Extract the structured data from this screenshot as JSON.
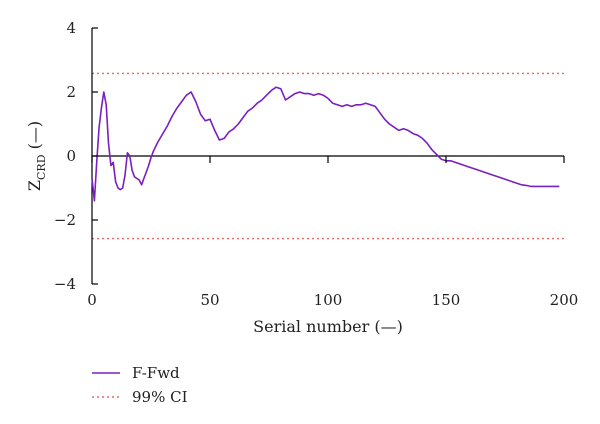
{
  "chart_data": {
    "type": "line",
    "xlabel": "Serial number (—)",
    "ylabel_main": "Z",
    "ylabel_sub": "CRD",
    "ylabel_suffix": " (—)",
    "xlim": [
      0,
      200
    ],
    "ylim": [
      -4,
      4
    ],
    "xticks": [
      "0",
      "50",
      "100",
      "150",
      "200"
    ],
    "yticks": [
      "4",
      "2",
      "0",
      "−2",
      "−4"
    ],
    "grid": false,
    "legend_position": "bottom-left",
    "colors": {
      "series": "#7a1fc0",
      "ci": "#e06a6a"
    },
    "series": [
      {
        "name": "F-Fwd",
        "x": [
          0,
          1,
          2,
          3,
          4,
          5,
          6,
          7,
          8,
          9,
          10,
          11,
          12,
          13,
          14,
          15,
          16,
          17,
          18,
          19,
          20,
          21,
          22,
          23,
          24,
          25,
          26,
          27,
          28,
          30,
          32,
          34,
          36,
          38,
          40,
          42,
          44,
          46,
          48,
          50,
          52,
          54,
          56,
          58,
          60,
          62,
          64,
          66,
          68,
          70,
          72,
          74,
          76,
          78,
          80,
          82,
          84,
          86,
          88,
          90,
          92,
          94,
          96,
          98,
          100,
          102,
          104,
          106,
          108,
          110,
          112,
          114,
          116,
          118,
          120,
          122,
          124,
          126,
          128,
          130,
          132,
          134,
          136,
          138,
          140,
          142,
          144,
          146,
          148,
          150,
          152,
          154,
          156,
          158,
          160,
          162,
          164,
          166,
          168,
          170,
          172,
          174,
          176,
          178,
          180,
          182,
          184,
          186,
          188,
          190,
          192,
          194,
          196,
          198
        ],
        "y": [
          -0.7,
          -1.4,
          -0.2,
          0.9,
          1.5,
          2.0,
          1.6,
          0.4,
          -0.3,
          -0.2,
          -0.8,
          -1.0,
          -1.05,
          -1.0,
          -0.6,
          0.1,
          0.0,
          -0.45,
          -0.65,
          -0.7,
          -0.75,
          -0.9,
          -0.7,
          -0.5,
          -0.3,
          -0.05,
          0.15,
          0.3,
          0.45,
          0.7,
          0.95,
          1.25,
          1.5,
          1.7,
          1.9,
          2.0,
          1.7,
          1.3,
          1.1,
          1.15,
          0.8,
          0.5,
          0.55,
          0.75,
          0.85,
          1.0,
          1.2,
          1.4,
          1.5,
          1.65,
          1.75,
          1.9,
          2.05,
          2.15,
          2.1,
          1.75,
          1.85,
          1.95,
          2.0,
          1.95,
          1.95,
          1.9,
          1.95,
          1.9,
          1.8,
          1.65,
          1.6,
          1.55,
          1.6,
          1.55,
          1.6,
          1.6,
          1.65,
          1.6,
          1.55,
          1.35,
          1.15,
          1.0,
          0.9,
          0.8,
          0.85,
          0.8,
          0.7,
          0.65,
          0.55,
          0.4,
          0.2,
          0.05,
          -0.1,
          -0.15,
          -0.15,
          -0.2,
          -0.25,
          -0.3,
          -0.35,
          -0.4,
          -0.45,
          -0.5,
          -0.55,
          -0.6,
          -0.65,
          -0.7,
          -0.75,
          -0.8,
          -0.85,
          -0.9,
          -0.92,
          -0.95,
          -0.95,
          -0.95,
          -0.95,
          -0.95,
          -0.95,
          -0.95
        ]
      },
      {
        "name": "99% CI",
        "upper": 2.58,
        "lower": -2.58
      }
    ]
  }
}
